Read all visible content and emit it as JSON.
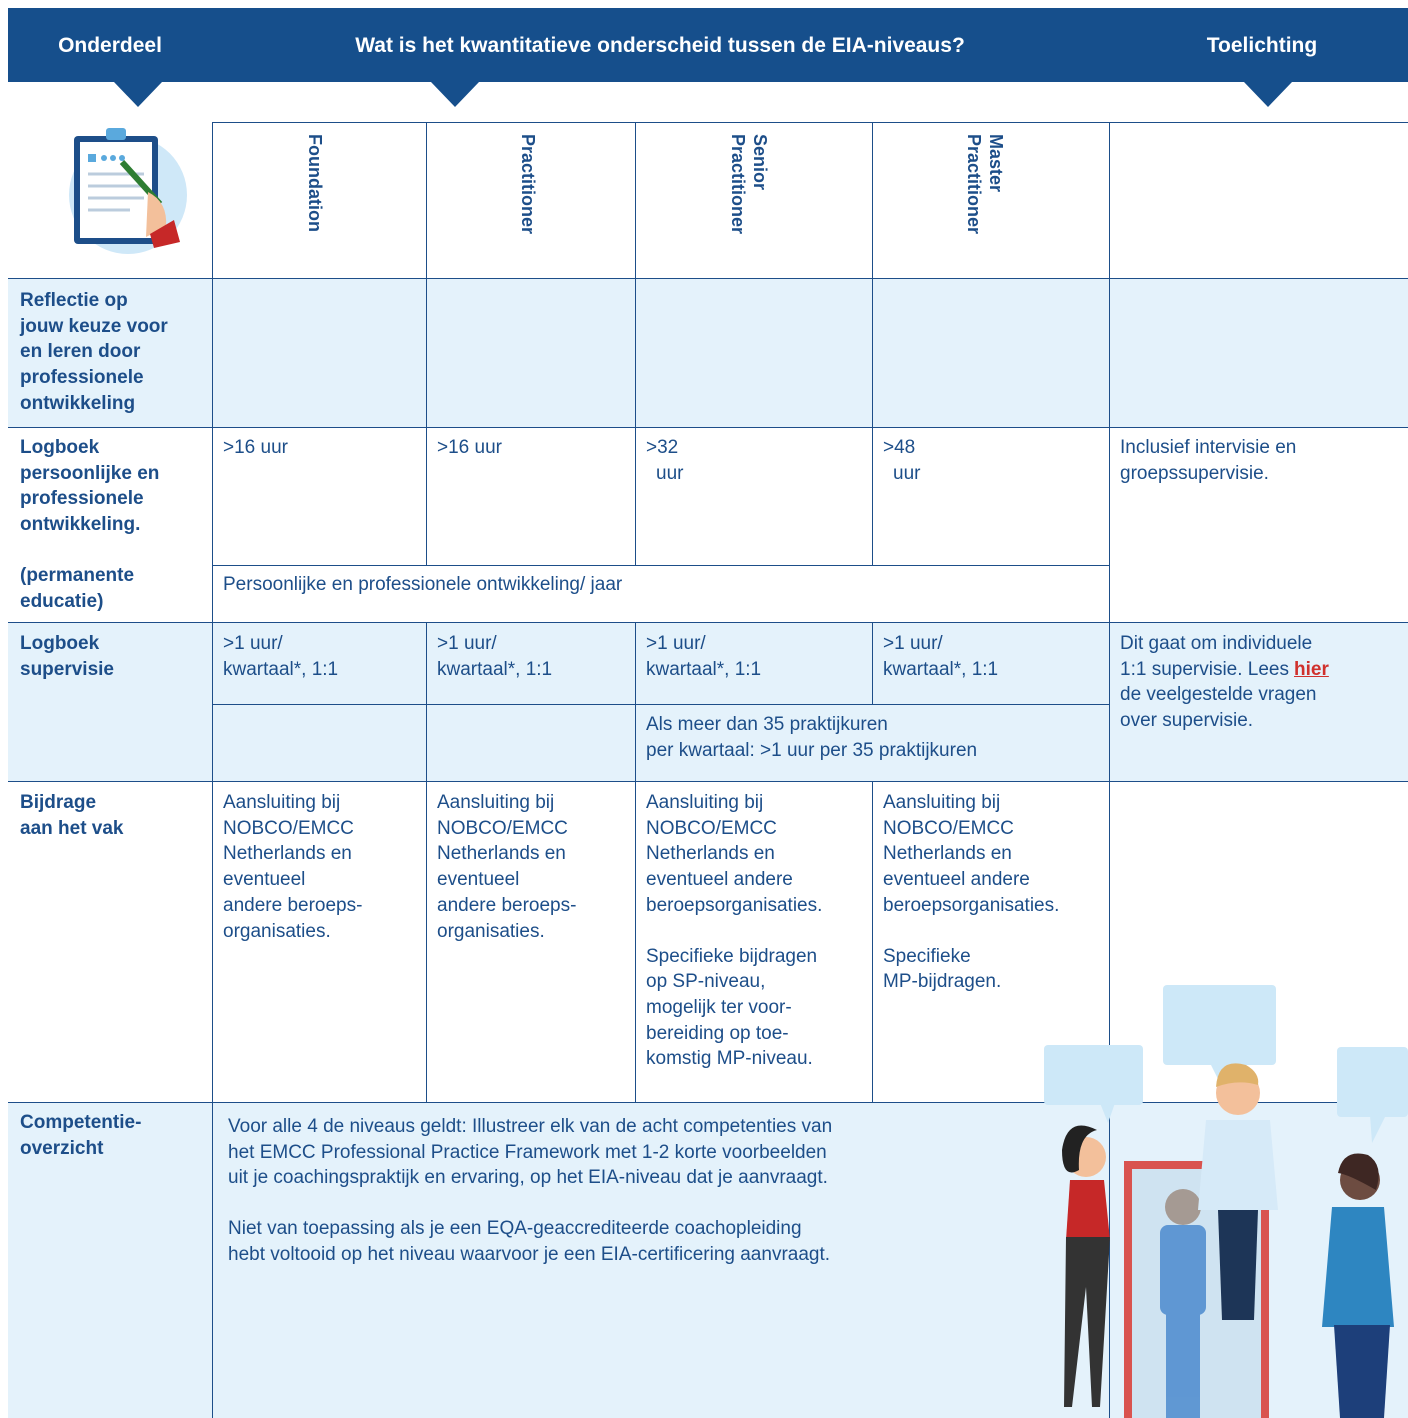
{
  "header": {
    "columns": [
      "Onderdeel",
      "Wat is het kwantitatieve onderscheid tussen de EIA-niveaus?",
      "Toelichting"
    ]
  },
  "levels": [
    [
      "Foundation"
    ],
    [
      "Practitioner"
    ],
    [
      "Senior",
      "Practitioner"
    ],
    [
      "Master",
      "Practitioner"
    ]
  ],
  "rows": {
    "reflectie": {
      "label": [
        "Reflectie op",
        "jouw keuze voor",
        "en leren door",
        "professionele",
        "ontwikkeling"
      ]
    },
    "logboek": {
      "label": [
        "Logboek",
        "persoonlijke en",
        "professionele",
        "ontwikkeling."
      ],
      "note": [
        "(permanente",
        "educatie)"
      ],
      "cells": [
        [
          ">16 uur"
        ],
        [
          ">16 uur"
        ],
        [
          ">32",
          "uur"
        ],
        [
          ">48",
          "uur"
        ]
      ],
      "span": "Persoonlijke en professionele ontwikkeling/ jaar",
      "toelichting": [
        "Inclusief intervisie en",
        "groepssupervisie."
      ]
    },
    "supervisie": {
      "label": [
        "Logboek",
        "supervisie"
      ],
      "cells": [
        [
          ">1 uur/",
          "kwartaal*, 1:1"
        ],
        [
          ">1 uur/",
          "kwartaal*, 1:1"
        ],
        [
          ">1 uur/",
          "kwartaal*, 1:1"
        ],
        [
          ">1 uur/",
          "kwartaal*, 1:1"
        ]
      ],
      "span": [
        "Als meer dan 35 praktijkuren",
        "per kwartaal: >1 uur per 35 praktijkuren"
      ],
      "toelichting": {
        "before_lines": [
          "Dit gaat om individuele",
          "1:1 supervisie. Lees"
        ],
        "link": "hier",
        "after_lines": [
          "de veelgestelde vragen",
          "over supervisie."
        ]
      }
    },
    "bijdrage": {
      "label": [
        "Bijdrage",
        "aan het vak"
      ],
      "cells": [
        [
          [
            "Aansluiting bij",
            "NOBCO/EMCC",
            "Netherlands en",
            "eventueel",
            "andere beroeps-",
            "organisaties."
          ]
        ],
        [
          [
            "Aansluiting bij",
            "NOBCO/EMCC",
            "Netherlands en",
            "eventueel",
            "andere beroeps-",
            "organisaties."
          ]
        ],
        [
          [
            "Aansluiting bij",
            "NOBCO/EMCC",
            "Netherlands en",
            "eventueel andere",
            "beroepsorganisaties."
          ],
          [
            "Specifieke bijdragen",
            "op SP-niveau,",
            "mogelijk ter voor-",
            "bereiding op toe-",
            "komstig MP-niveau."
          ]
        ],
        [
          [
            "Aansluiting bij",
            "NOBCO/EMCC",
            "Netherlands en",
            "eventueel andere",
            "beroepsorganisaties."
          ],
          [
            "Specifieke",
            "MP-bijdragen."
          ]
        ]
      ]
    },
    "competentie": {
      "label": [
        "Competentie-",
        "overzicht"
      ],
      "text": [
        [
          "Voor alle 4 de niveaus geldt: Illustreer elk van de acht competenties van",
          "het EMCC Professional Practice Framework met 1-2 korte voorbeelden",
          "uit je coachingspraktijk en ervaring, op het EIA-niveau dat je aanvraagt."
        ],
        [
          "Niet van toepassing als je een EQA-geaccrediteerde coachopleiding",
          "hebt voltooid op het niveau waarvoor je een EIA-certificering aanvraagt."
        ]
      ]
    }
  }
}
